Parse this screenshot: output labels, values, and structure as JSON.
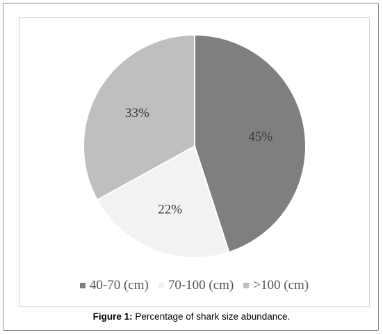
{
  "chart_data": {
    "type": "pie",
    "categories": [
      "40-70 (cm)",
      "70-100 (cm)",
      ">100 (cm)"
    ],
    "values": [
      45,
      22,
      33
    ],
    "labels": [
      "45%",
      "22%",
      "33%"
    ],
    "colors": [
      "#7f7f7f",
      "#f2f2f2",
      "#bfbfbf"
    ],
    "legend_position": "bottom"
  },
  "caption": {
    "prefix": "Figure 1:",
    "text": " Percentage of shark size abundance."
  }
}
